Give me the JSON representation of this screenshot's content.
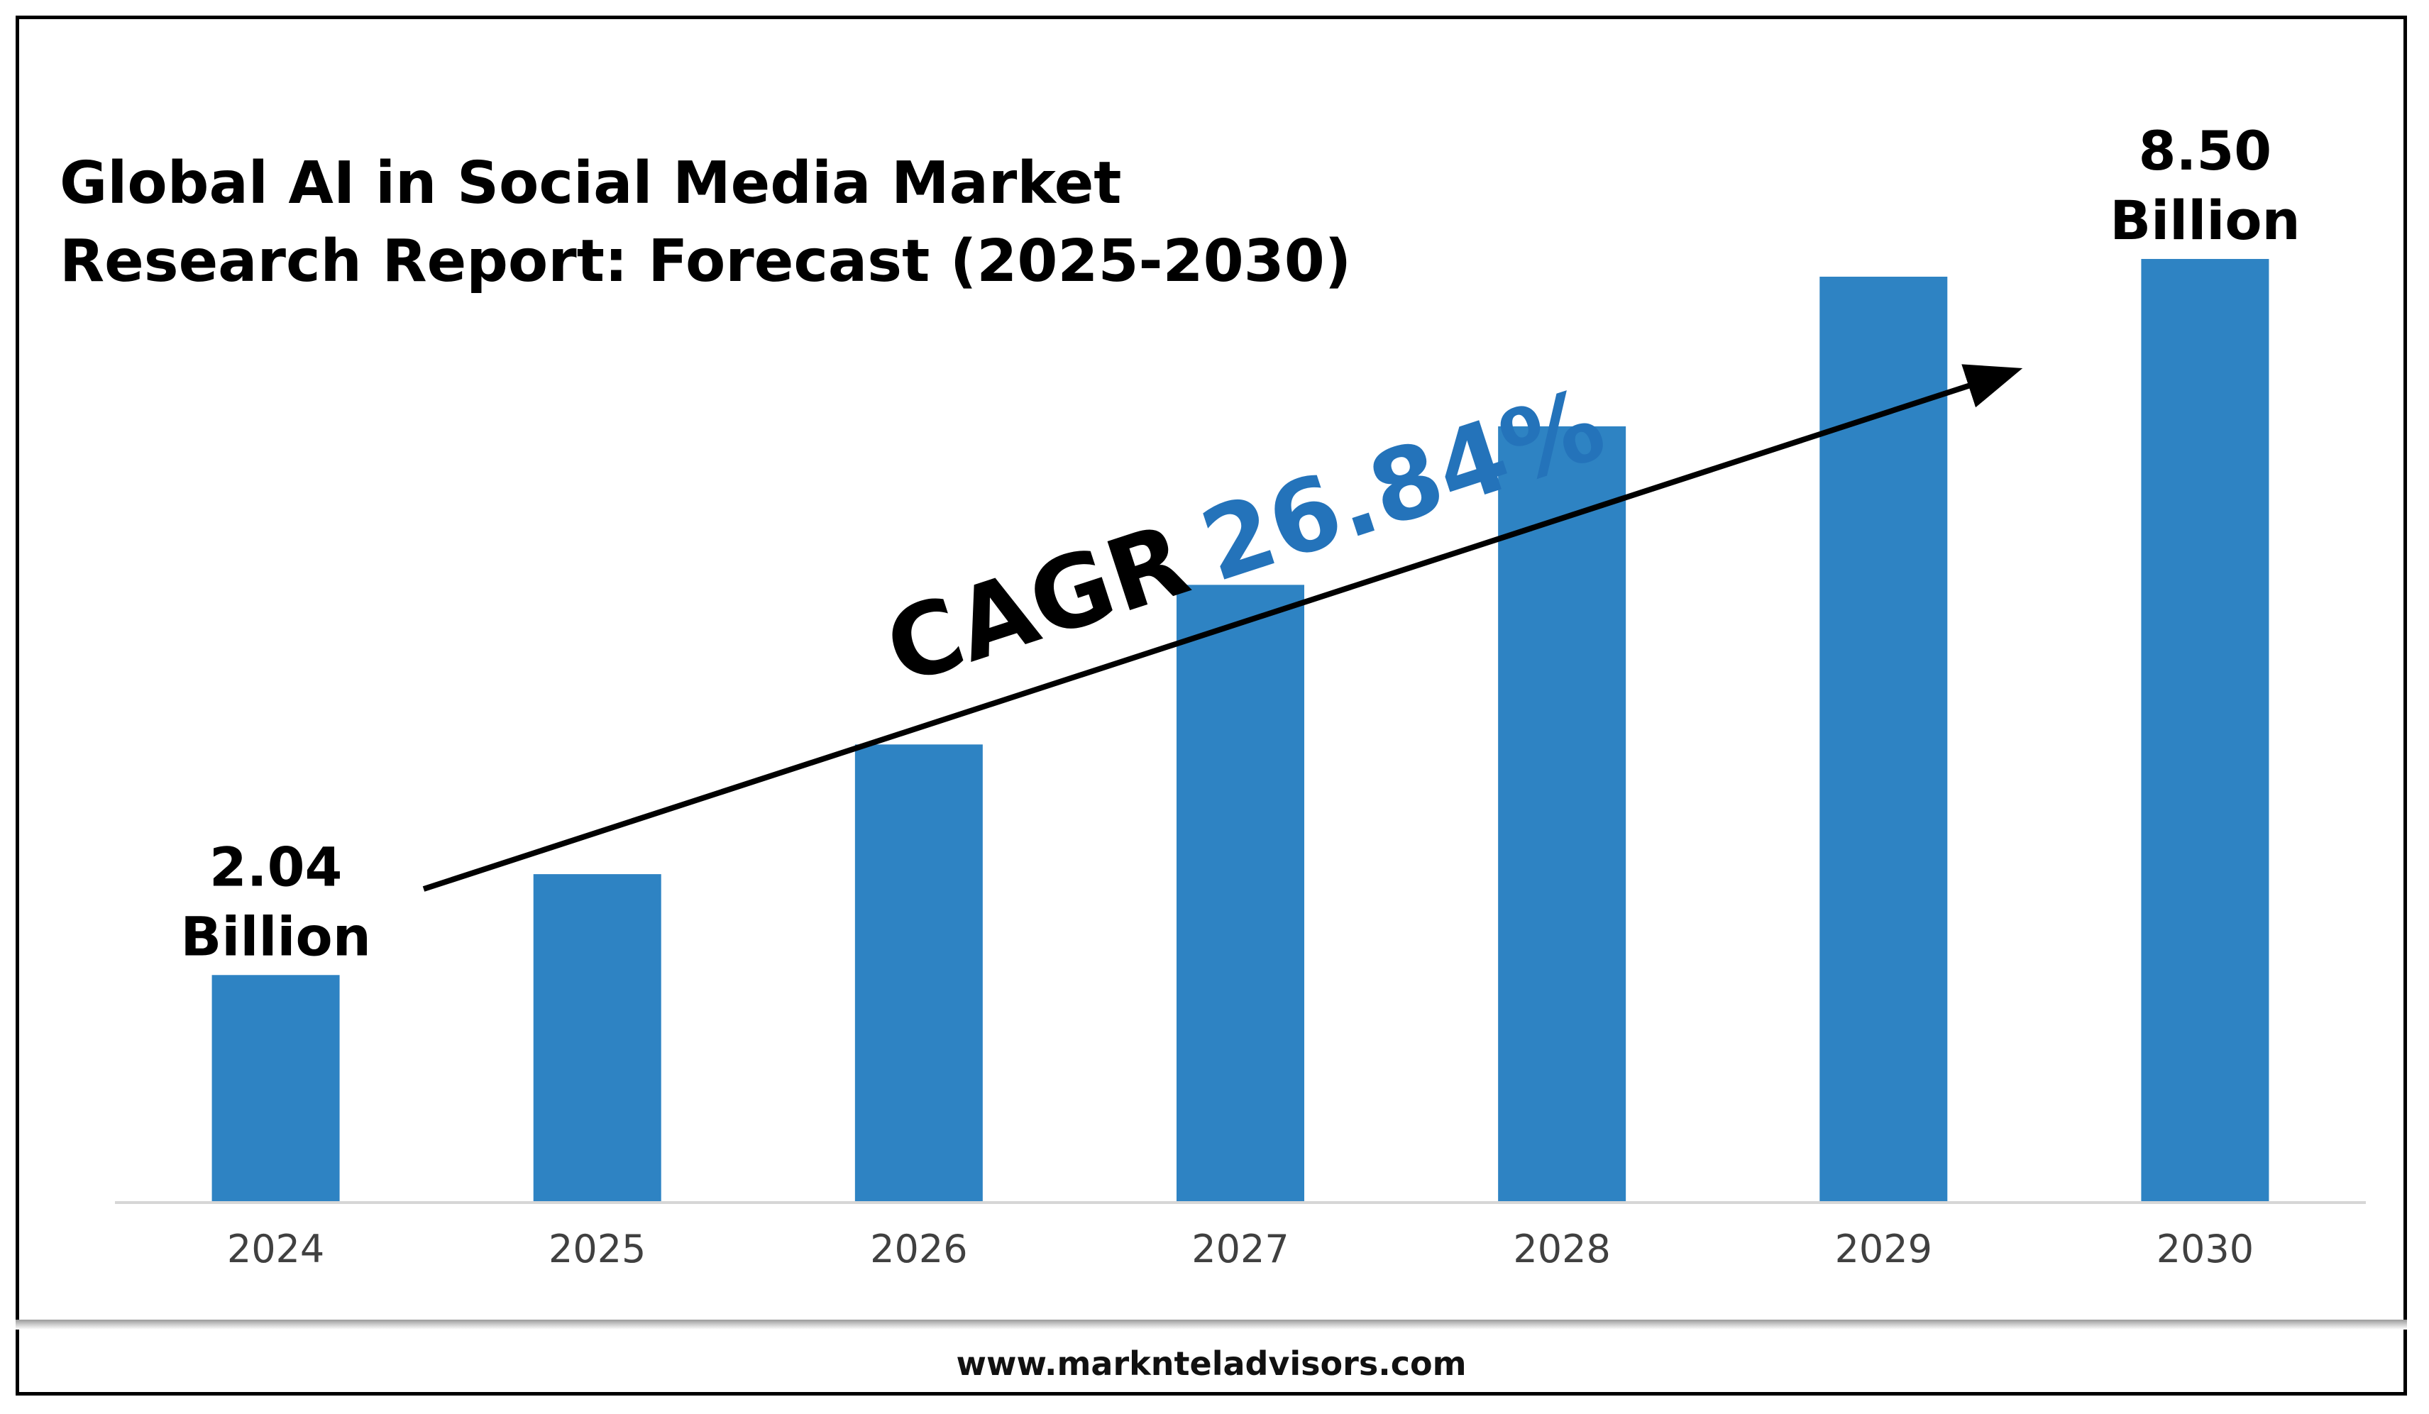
{
  "chart_data": {
    "type": "bar",
    "title": "Global AI in Social Media Market Research Report: Forecast (2025-2030)",
    "title_lines": [
      "Global AI in Social Media Market",
      "Research Report: Forecast (2025-2030)"
    ],
    "categories": [
      "2024",
      "2025",
      "2026",
      "2027",
      "2028",
      "2029",
      "2030"
    ],
    "values": [
      2.04,
      2.95,
      4.12,
      5.56,
      6.99,
      8.34,
      8.5
    ],
    "value_labels": [
      {
        "index": 0,
        "lines": [
          "2.04",
          "Billion"
        ]
      },
      {
        "index": 6,
        "lines": [
          "8.50",
          "Billion"
        ]
      }
    ],
    "annotation": {
      "prefix": "CAGR",
      "value": "26.84%"
    },
    "ylim": [
      0,
      9.3
    ],
    "grid": false,
    "legend": "none",
    "colors": {
      "bar": "#2e83c3",
      "cagr": "#2473ba",
      "text": "#000000",
      "tick": "#404040",
      "axis": "#d6d6d6"
    }
  },
  "footer": {
    "url": "www.marknteladvisors.com"
  }
}
